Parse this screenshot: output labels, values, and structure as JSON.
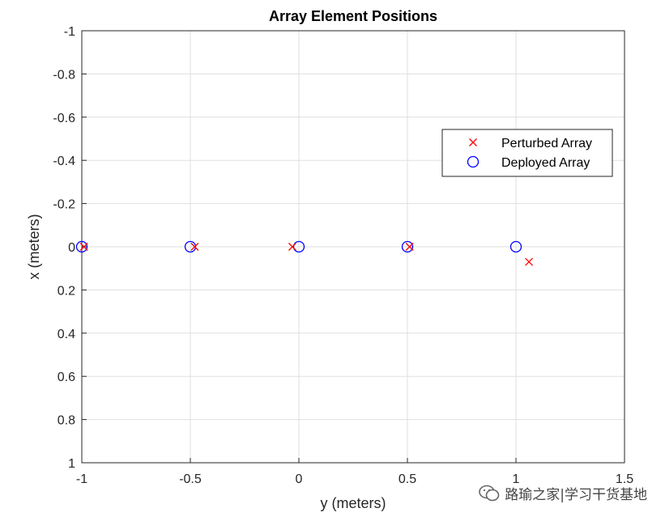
{
  "chart_data": {
    "type": "scatter",
    "title": "Array Element Positions",
    "xlabel": "y (meters)",
    "ylabel": "x (meters)",
    "xlim": [
      -1,
      1.5
    ],
    "ylim": [
      -1,
      1
    ],
    "y_reversed": true,
    "grid": true,
    "legend_position": "top-right",
    "x_ticks": [
      "-1",
      "-0.5",
      "0",
      "0.5",
      "1",
      "1.5"
    ],
    "y_ticks": [
      "-1",
      "-0.8",
      "-0.6",
      "-0.4",
      "-0.2",
      "0",
      "0.2",
      "0.4",
      "0.6",
      "0.8",
      "1"
    ],
    "series": [
      {
        "name": "Perturbed Array",
        "marker": "x",
        "color": "#ff0000",
        "points": [
          {
            "x": -0.99,
            "y": 0.0
          },
          {
            "x": -0.48,
            "y": 0.0
          },
          {
            "x": -0.03,
            "y": 0.0
          },
          {
            "x": 0.51,
            "y": 0.0
          },
          {
            "x": 1.06,
            "y": 0.07
          }
        ]
      },
      {
        "name": "Deployed Array",
        "marker": "o",
        "color": "#0000ff",
        "points": [
          {
            "x": -1.0,
            "y": 0.0
          },
          {
            "x": -0.5,
            "y": 0.0
          },
          {
            "x": 0.0,
            "y": 0.0
          },
          {
            "x": 0.5,
            "y": 0.0
          },
          {
            "x": 1.0,
            "y": 0.0
          }
        ]
      }
    ]
  },
  "watermark": {
    "text": "路瑜之家|学习干货基地",
    "icon": "wechat-icon"
  }
}
